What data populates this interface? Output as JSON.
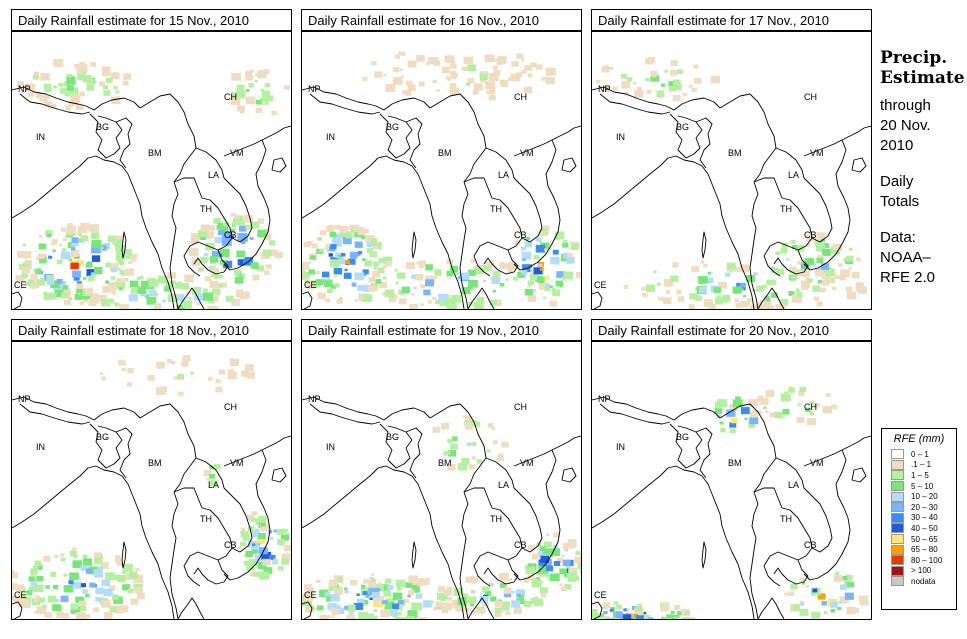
{
  "panels": [
    {
      "title": "Daily Rainfall estimate for  15 Nov., 2010"
    },
    {
      "title": "Daily Rainfall estimate for  16 Nov., 2010"
    },
    {
      "title": "Daily Rainfall estimate for  17 Nov., 2010"
    },
    {
      "title": "Daily Rainfall estimate for  18 Nov., 2010"
    },
    {
      "title": "Daily Rainfall estimate for  19 Nov., 2010"
    },
    {
      "title": "Daily Rainfall estimate for  20 Nov., 2010"
    }
  ],
  "country_labels": {
    "np": "NP",
    "in": "IN",
    "bg": "BG",
    "ch": "CH",
    "bm": "BM",
    "vm": "VM",
    "la": "LA",
    "th": "TH",
    "cb": "CB",
    "ce": "CE"
  },
  "side": {
    "heading1": "Precip.",
    "heading2": "Estimate",
    "line1": "through",
    "line2": "20 Nov.",
    "line3": "2010",
    "line4": "Daily",
    "line5": "Totals",
    "line6": "Data:",
    "line7": "NOAA–",
    "line8": "RFE 2.0"
  },
  "legend": {
    "title": "RFE (mm)",
    "items": [
      {
        "label": "0 – 1",
        "color": "#ffffff"
      },
      {
        "label": ".1 – 1",
        "color": "#f0dcc0"
      },
      {
        "label": "1 – 5",
        "color": "#b4f0a0"
      },
      {
        "label": "5 – 10",
        "color": "#78e678"
      },
      {
        "label": "10 – 20",
        "color": "#b4dcff"
      },
      {
        "label": "20 – 30",
        "color": "#78b4ff"
      },
      {
        "label": "30 – 40",
        "color": "#3c8cf0"
      },
      {
        "label": "40 – 50",
        "color": "#1e5adc"
      },
      {
        "label": "50 – 65",
        "color": "#ffe678"
      },
      {
        "label": "65 – 80",
        "color": "#ffa000"
      },
      {
        "label": "80 – 100",
        "color": "#e63c00"
      },
      {
        "label": "> 100",
        "color": "#a01414"
      },
      {
        "label": "nodata",
        "color": "#c8c8c8"
      }
    ]
  }
}
